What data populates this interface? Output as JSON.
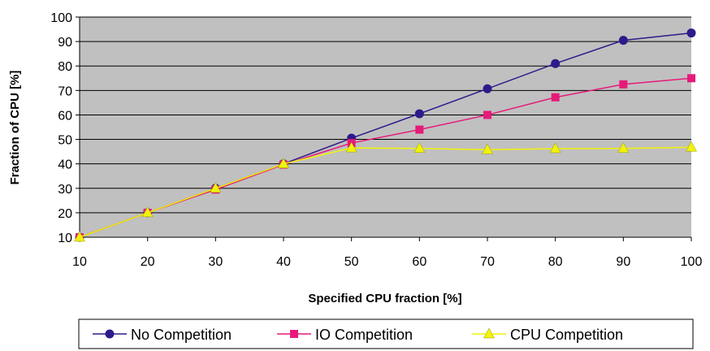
{
  "chart_data": {
    "type": "line",
    "title": "",
    "xlabel": "Specified CPU fraction [%]",
    "ylabel": "Fraction of CPU [%]",
    "x": [
      10,
      20,
      30,
      40,
      50,
      60,
      70,
      80,
      90,
      100
    ],
    "xlim": [
      10,
      100
    ],
    "ylim": [
      10,
      100
    ],
    "xticks": [
      10,
      20,
      30,
      40,
      50,
      60,
      70,
      80,
      90,
      100
    ],
    "yticks": [
      10,
      20,
      30,
      40,
      50,
      60,
      70,
      80,
      90,
      100
    ],
    "grid": "horizontal",
    "plot_background": "#c0c0c0",
    "legend_position": "bottom",
    "series": [
      {
        "name": "No Competition",
        "color": "#2e1a8a",
        "marker": "circle",
        "values": [
          10,
          20,
          30,
          40,
          50.5,
          60.5,
          70.7,
          81,
          90.5,
          93.5
        ]
      },
      {
        "name": "IO Competition",
        "color": "#e61a7a",
        "marker": "square",
        "values": [
          10,
          20,
          29.5,
          39.7,
          48.5,
          54,
          60,
          67.2,
          72.5,
          75
        ]
      },
      {
        "name": "CPU Competition",
        "color": "#f2f20a",
        "marker": "triangle",
        "values": [
          10,
          20,
          30,
          40,
          46.5,
          46.3,
          45.8,
          46.2,
          46.3,
          46.8
        ]
      }
    ]
  }
}
